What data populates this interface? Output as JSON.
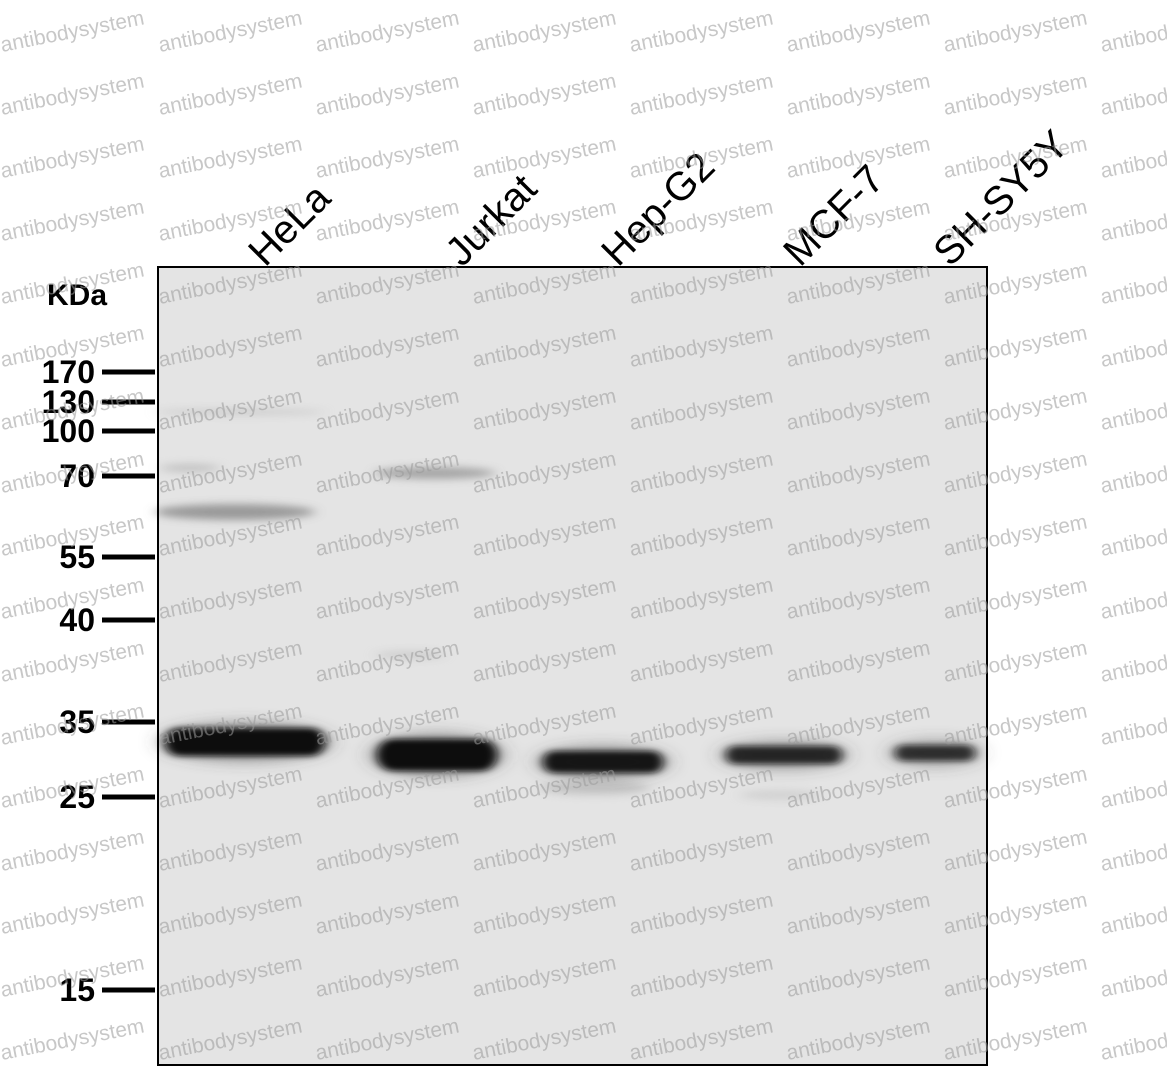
{
  "unit_label": "KDa",
  "lanes": [
    {
      "label": "HeLa",
      "band_intensity": 1.0
    },
    {
      "label": "Jurkat",
      "band_intensity": 1.0
    },
    {
      "label": "Hep-G2",
      "band_intensity": 0.95
    },
    {
      "label": "MCF-7",
      "band_intensity": 0.85
    },
    {
      "label": "SH-SY5Y",
      "band_intensity": 0.8
    }
  ],
  "markers": [
    {
      "label": "170",
      "kda": 170
    },
    {
      "label": "130",
      "kda": 130
    },
    {
      "label": "100",
      "kda": 100
    },
    {
      "label": "70",
      "kda": 70
    },
    {
      "label": "55",
      "kda": 55
    },
    {
      "label": "40",
      "kda": 40
    },
    {
      "label": "35",
      "kda": 35
    },
    {
      "label": "25",
      "kda": 25
    },
    {
      "label": "15",
      "kda": 15
    }
  ],
  "band_kda": 31,
  "watermark": "antibodysystem",
  "colors": {
    "membrane": "#e4e4e4",
    "band": "#0a0a0a",
    "frame": "#000000",
    "watermark": "#9a9a9a"
  }
}
